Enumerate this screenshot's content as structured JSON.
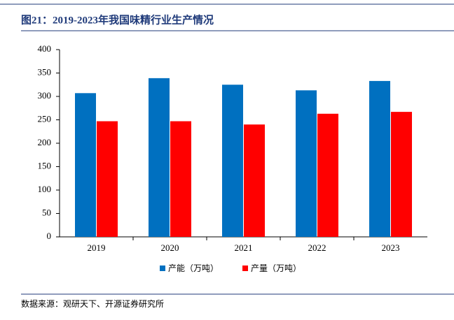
{
  "chart_data": {
    "type": "bar",
    "title": "图21：2019-2023年我国味精行业生产情况",
    "categories": [
      "2019",
      "2020",
      "2021",
      "2022",
      "2023"
    ],
    "series": [
      {
        "name": "产能（万吨）",
        "color": "#0070c0",
        "values": [
          307,
          339,
          325,
          313,
          333
        ]
      },
      {
        "name": "产量（万吨）",
        "color": "#ff0000",
        "values": [
          247,
          247,
          240,
          263,
          267
        ]
      }
    ],
    "ylim": [
      0,
      400
    ],
    "yticks": [
      0,
      50,
      100,
      150,
      200,
      250,
      300,
      350,
      400
    ],
    "grid": false,
    "legend": "bottom",
    "source": "数据来源：观研天下、开源证券研究所"
  }
}
